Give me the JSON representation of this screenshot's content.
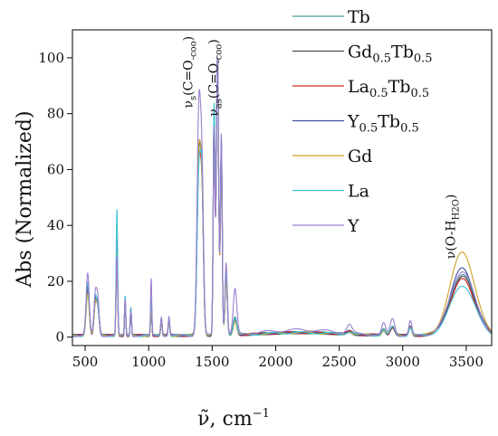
{
  "chart_data": {
    "type": "line",
    "xlabel": {
      "main": "ν̃, cm",
      "sup": "−1"
    },
    "ylabel": "Abs (Normalized)",
    "xlim": [
      400,
      3700
    ],
    "ylim": [
      -3,
      110
    ],
    "x_ticks": [
      500,
      1000,
      1500,
      2000,
      2500,
      3000,
      3500
    ],
    "y_ticks": [
      0,
      20,
      40,
      60,
      80,
      100
    ],
    "grid": false,
    "legend_placement": "top-right",
    "series": [
      {
        "name": "Tb",
        "label": {
          "base": "Tb"
        },
        "color": "#4e9a9a",
        "peaks": {
          "b520": 18,
          "b578": 10,
          "b598": 10,
          "b750": 34,
          "b815": 13,
          "b860": 10,
          "b1020": 12,
          "b1100": 6,
          "b1160": 5,
          "b1395": 60,
          "b1420": 48,
          "b1515": 80,
          "b1542": 100,
          "b1572": 70,
          "b1610": 22,
          "b1680": 6,
          "b2200": 1,
          "b2580": 1,
          "b2850": 2,
          "b2920": 3,
          "b3060": 3,
          "b3470": 22
        }
      },
      {
        "name": "Gd0.5Tb0.5",
        "label": {
          "base": "Gd",
          "sub1": "0.5",
          "mid": "Tb",
          "sub2": "0.5"
        },
        "color": "#4d4d4d",
        "peaks": {
          "b520": 16,
          "b578": 9,
          "b598": 11,
          "b750": 32,
          "b815": 12,
          "b860": 9,
          "b1020": 11,
          "b1100": 5,
          "b1160": 5,
          "b1395": 62,
          "b1420": 46,
          "b1515": 78,
          "b1542": 100,
          "b1572": 68,
          "b1610": 20,
          "b1680": 6,
          "b2200": 1,
          "b2580": 1,
          "b2850": 2,
          "b2920": 3,
          "b3060": 3,
          "b3470": 21
        }
      },
      {
        "name": "La0.5Tb0.5",
        "label": {
          "base": "La",
          "sub1": "0.5",
          "mid": "Tb",
          "sub2": "0.5"
        },
        "color": "#d62728",
        "peaks": {
          "b520": 17,
          "b578": 10,
          "b598": 10,
          "b750": 35,
          "b815": 13,
          "b860": 10,
          "b1020": 12,
          "b1100": 6,
          "b1160": 6,
          "b1395": 58,
          "b1420": 44,
          "b1515": 76,
          "b1542": 100,
          "b1572": 66,
          "b1610": 20,
          "b1680": 5,
          "b2200": 1,
          "b2580": 1,
          "b2850": 2,
          "b2920": 3,
          "b3060": 3,
          "b3470": 20
        }
      },
      {
        "name": "Y0.5Tb0.5",
        "label": {
          "base": "Y",
          "sub1": "0.5",
          "mid": "Tb",
          "sub2": "0.5"
        },
        "color": "#3b4fa0",
        "peaks": {
          "b520": 18,
          "b578": 10,
          "b598": 11,
          "b750": 33,
          "b815": 12,
          "b860": 9,
          "b1020": 11,
          "b1100": 5,
          "b1160": 5,
          "b1395": 61,
          "b1420": 47,
          "b1515": 79,
          "b1542": 100,
          "b1572": 69,
          "b1610": 21,
          "b1680": 6,
          "b2200": 1,
          "b2580": 1,
          "b2850": 2,
          "b2920": 3,
          "b3060": 3,
          "b3470": 24
        }
      },
      {
        "name": "Gd",
        "label": {
          "base": "Gd"
        },
        "color": "#c9a227",
        "peaks": {
          "b520": 15,
          "b578": 9,
          "b598": 10,
          "b750": 30,
          "b815": 12,
          "b860": 9,
          "b1020": 10,
          "b1100": 5,
          "b1160": 5,
          "b1395": 63,
          "b1420": 45,
          "b1515": 77,
          "b1542": 100,
          "b1572": 65,
          "b1610": 19,
          "b1680": 5,
          "b2200": 1,
          "b2580": 1,
          "b2850": 2,
          "b2920": 3,
          "b3060": 3,
          "b3470": 30
        }
      },
      {
        "name": "La",
        "label": {
          "base": "La"
        },
        "color": "#3fc6d8",
        "peaks": {
          "b520": 19,
          "b578": 11,
          "b598": 10,
          "b750": 45,
          "b815": 14,
          "b860": 10,
          "b1020": 13,
          "b1100": 6,
          "b1160": 6,
          "b1395": 56,
          "b1420": 50,
          "b1515": 82,
          "b1542": 100,
          "b1572": 71,
          "b1610": 23,
          "b1680": 6,
          "b2200": 1,
          "b2580": 1,
          "b2850": 2,
          "b2920": 3,
          "b3060": 3,
          "b3470": 18
        }
      },
      {
        "name": "Y",
        "label": {
          "base": "Y"
        },
        "color": "#9b7fd0",
        "peaks": {
          "b520": 22,
          "b578": 12,
          "b598": 14,
          "b750": 28,
          "b815": 13,
          "b860": 9,
          "b1020": 20,
          "b1100": 7,
          "b1160": 7,
          "b1395": 80,
          "b1420": 52,
          "b1515": 74,
          "b1542": 100,
          "b1572": 72,
          "b1610": 26,
          "b1680": 16,
          "b2200": 2,
          "b2580": 3,
          "b2850": 4,
          "b2920": 6,
          "b3060": 5,
          "b3470": 23
        }
      }
    ],
    "annotations": [
      {
        "id": "nu-s",
        "prefix": "ν",
        "sub": "s",
        "mid": "(C=O",
        "sub2": "-coo",
        "suffix": ")",
        "x": 1400,
        "y": 82
      },
      {
        "id": "nu-as",
        "prefix": "ν",
        "sub": "as",
        "mid": "(C=O",
        "sub2": "-coo",
        "suffix": ")",
        "x": 1600,
        "y": 79
      },
      {
        "id": "nu-oh",
        "prefix": "ν(O-H",
        "sub": "H2O",
        "suffix": ")",
        "x": 3470,
        "y": 28
      }
    ]
  }
}
